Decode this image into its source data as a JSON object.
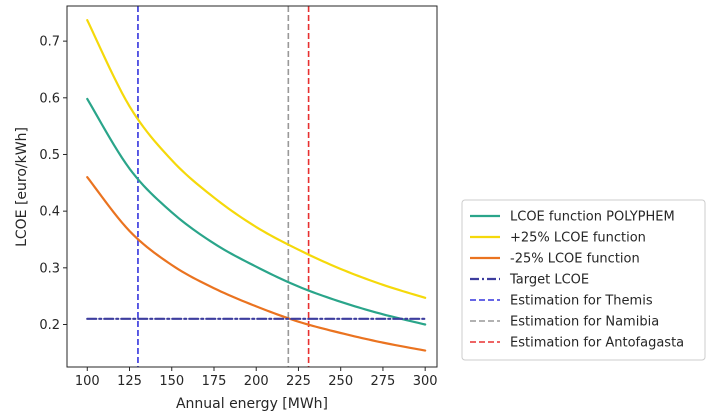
{
  "chart_data": {
    "type": "line",
    "title": "",
    "xlabel": "Annual energy [MWh]",
    "ylabel": "LCOE [euro/kWh]",
    "xlim": [
      88,
      307
    ],
    "ylim": [
      0.125,
      0.762
    ],
    "xticks": [
      100,
      125,
      150,
      175,
      200,
      225,
      250,
      275,
      300
    ],
    "yticks": [
      0.2,
      0.3,
      0.4,
      0.5,
      0.6,
      0.7
    ],
    "grid": false,
    "legend_position": "outside-right",
    "series": [
      {
        "name": "LCOE function POLYPHEM",
        "color": "#2aa58a",
        "style": "solid",
        "x": [
          100,
          125,
          150,
          175,
          200,
          225,
          250,
          275,
          300
        ],
        "y": [
          0.598,
          0.475,
          0.398,
          0.343,
          0.302,
          0.267,
          0.24,
          0.218,
          0.2
        ]
      },
      {
        "name": "+25% LCOE function",
        "color": "#f5d90a",
        "style": "solid",
        "x": [
          100,
          125,
          150,
          175,
          200,
          225,
          250,
          275,
          300
        ],
        "y": [
          0.737,
          0.585,
          0.49,
          0.424,
          0.372,
          0.332,
          0.298,
          0.27,
          0.247
        ]
      },
      {
        "name": "-25% LCOE function",
        "color": "#ea7320",
        "style": "solid",
        "x": [
          100,
          125,
          150,
          175,
          200,
          225,
          250,
          275,
          300
        ],
        "y": [
          0.46,
          0.365,
          0.305,
          0.264,
          0.232,
          0.205,
          0.185,
          0.168,
          0.154
        ]
      },
      {
        "name": "Target LCOE",
        "color": "#3d3d9e",
        "style": "dashdot",
        "x": [
          100,
          300
        ],
        "y": [
          0.21,
          0.21
        ]
      }
    ],
    "vlines": [
      {
        "name": "Estimation for Themis",
        "x": 130,
        "color": "#3333dd",
        "style": "dashed"
      },
      {
        "name": "Estimation for Namibia",
        "x": 219,
        "color": "#999999",
        "style": "dashed"
      },
      {
        "name": "Estimation for Antofagasta",
        "x": 231,
        "color": "#e83030",
        "style": "dashed"
      }
    ]
  }
}
